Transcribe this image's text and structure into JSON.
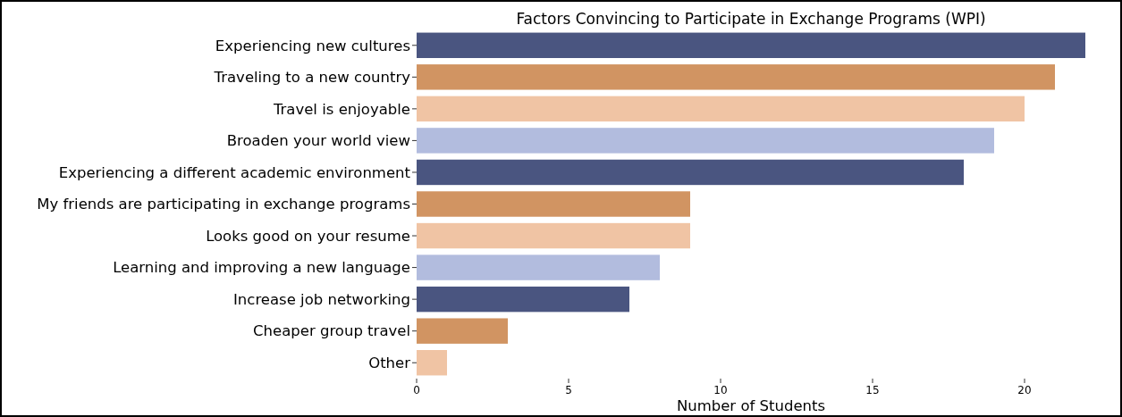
{
  "chart_data": {
    "type": "bar",
    "orientation": "horizontal",
    "title": "Factors Convincing to Participate in Exchange Programs (WPI)",
    "xlabel": "Number of Students",
    "categories": [
      "Experiencing new cultures",
      "Traveling to a new country",
      "Travel is enjoyable",
      "Broaden your world view",
      "Experiencing a different academic environment",
      "My friends are participating in exchange programs",
      "Looks good on your resume",
      "Learning and improving a new language",
      "Increase job networking",
      "Cheaper group travel",
      "Other"
    ],
    "values": [
      22,
      21,
      20,
      19,
      18,
      9,
      9,
      8,
      7,
      3,
      1
    ],
    "colors": [
      "#4a5580",
      "#d19462",
      "#f0c4a4",
      "#b2bcde",
      "#4a5580",
      "#d19462",
      "#f0c4a4",
      "#b2bcde",
      "#4a5580",
      "#d19462",
      "#f0c4a4"
    ],
    "xlim": [
      0,
      22
    ],
    "xticks": [
      0,
      5,
      10,
      15,
      20
    ],
    "grid": false
  }
}
